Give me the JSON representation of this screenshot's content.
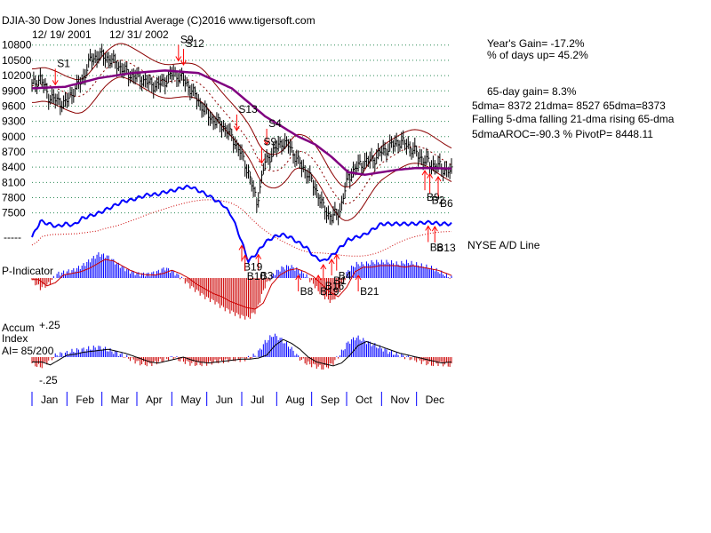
{
  "header": {
    "title": "DJIA-30  Dow Jones Industrial Average   (C)2016 www.tigersoft.com",
    "date_range": "12/ 19/ 2001",
    "date_range_end": "12/ 31/ 2002"
  },
  "stats": {
    "years_gain": "Year's Gain= -17.2%",
    "pct_days_up": "% of days up= 45.2%",
    "gain_65day": "65-day gain= 8.3%",
    "ma_line": "5dma= 8372 21dma= 8527 65dma=8373",
    "trend_line": "Falling 5-dma  falling 21-dma  rising 65-dma",
    "aroc_line": "5dmaAROC=-90.3 %  PivotP= 8448.11"
  },
  "panels": {
    "ad_line_label": "NYSE A/D Line",
    "p_indicator_label": "P-Indicator",
    "accum_label": "Accum",
    "index_label": "Index",
    "ai_label": "AI= 85/200",
    "accum_top": "+.25",
    "accum_bottom": "-.25",
    "ad_dashes": "-----"
  },
  "chart_data": {
    "type": "line",
    "title": "DJIA-30 Dow Jones Industrial Average",
    "xlabel": "",
    "ylabel": "",
    "ylim": [
      7250,
      10900
    ],
    "y_ticks": [
      10800,
      10500,
      10200,
      9900,
      9600,
      9300,
      9000,
      8700,
      8400,
      8100,
      7800,
      7500
    ],
    "months": [
      "Jan",
      "Feb",
      "Mar",
      "Apr",
      "May",
      "Jun",
      "Jul",
      "Aug",
      "Sep",
      "Oct",
      "Nov",
      "Dec"
    ],
    "series": [
      {
        "name": "DJIA close",
        "t": [
          0,
          5,
          10,
          15,
          20,
          25,
          30,
          35,
          40,
          45,
          50,
          55,
          60,
          65,
          70,
          75,
          80,
          85,
          90,
          95,
          100,
          105,
          110,
          115,
          120,
          125,
          130,
          135,
          140,
          145,
          150,
          155,
          160,
          165,
          170,
          175,
          180,
          185,
          190,
          195,
          200,
          205,
          210,
          215,
          220,
          225,
          230,
          235,
          240,
          245,
          252
        ],
        "values": [
          10000,
          10150,
          9800,
          9700,
          9650,
          9900,
          10100,
          10500,
          10600,
          10550,
          10450,
          10300,
          10200,
          10150,
          10050,
          10000,
          10100,
          10250,
          10150,
          9950,
          9700,
          9450,
          9300,
          9200,
          9000,
          8700,
          8300,
          7700,
          8500,
          8700,
          8900,
          8800,
          8500,
          8300,
          8000,
          7600,
          7400,
          7550,
          8200,
          8400,
          8500,
          8550,
          8700,
          8800,
          8900,
          8850,
          8700,
          8550,
          8450,
          8400,
          8300
        ]
      },
      {
        "name": "65-dma",
        "t": [
          0,
          20,
          40,
          60,
          80,
          100,
          120,
          140,
          150,
          160,
          170,
          180,
          190,
          200,
          210,
          220,
          230,
          240,
          252
        ],
        "values": [
          9950,
          9980,
          10150,
          10250,
          10300,
          10250,
          9950,
          9400,
          9200,
          9000,
          8850,
          8600,
          8300,
          8250,
          8300,
          8350,
          8380,
          8380,
          8373
        ]
      },
      {
        "name": "NYSE A/D Line",
        "t": [
          0,
          5,
          10,
          15,
          20,
          25,
          30,
          35,
          40,
          45,
          50,
          55,
          60,
          65,
          70,
          75,
          80,
          85,
          90,
          95,
          100,
          105,
          110,
          115,
          120,
          125,
          130,
          135,
          140,
          145,
          150,
          155,
          160,
          165,
          170,
          175,
          180,
          185,
          190,
          195,
          200,
          205,
          210,
          215,
          220,
          225,
          230,
          235,
          240,
          245,
          252
        ],
        "values": [
          20,
          32,
          30,
          28,
          30,
          29,
          34,
          36,
          38,
          41,
          44,
          47,
          48,
          50,
          52,
          52,
          54,
          55,
          57,
          58,
          55,
          52,
          48,
          44,
          36,
          20,
          2,
          8,
          16,
          20,
          22,
          20,
          16,
          12,
          5,
          2,
          6,
          12,
          18,
          20,
          22,
          26,
          30,
          30,
          30,
          30,
          30,
          31,
          31,
          30,
          30
        ]
      },
      {
        "name": "P-Indicator",
        "t": [
          0,
          5,
          10,
          15,
          20,
          25,
          30,
          35,
          40,
          45,
          50,
          55,
          60,
          65,
          70,
          75,
          80,
          85,
          90,
          95,
          100,
          105,
          110,
          115,
          120,
          125,
          130,
          135,
          140,
          145,
          150,
          155,
          160,
          165,
          170,
          175,
          180,
          185,
          190,
          195,
          200,
          205,
          210,
          215,
          220,
          225,
          230,
          235,
          240,
          245,
          252
        ],
        "values": [
          -5,
          -25,
          -15,
          10,
          15,
          20,
          30,
          45,
          60,
          55,
          40,
          25,
          15,
          10,
          10,
          15,
          25,
          15,
          0,
          -20,
          -35,
          -50,
          -60,
          -75,
          -85,
          -95,
          -100,
          -80,
          -20,
          10,
          25,
          30,
          20,
          5,
          -20,
          -45,
          -60,
          -30,
          20,
          35,
          35,
          40,
          40,
          40,
          35,
          40,
          35,
          30,
          25,
          15,
          0
        ]
      },
      {
        "name": "Accumulation Index",
        "t": [
          0,
          5,
          10,
          15,
          20,
          25,
          30,
          35,
          40,
          45,
          50,
          55,
          60,
          65,
          70,
          75,
          80,
          85,
          90,
          95,
          100,
          105,
          110,
          115,
          120,
          125,
          130,
          135,
          140,
          145,
          150,
          155,
          160,
          165,
          170,
          175,
          180,
          185,
          190,
          195,
          200,
          205,
          210,
          215,
          220,
          225,
          230,
          235,
          240,
          245,
          252
        ],
        "values": [
          -0.05,
          -0.08,
          -0.03,
          0.02,
          0.03,
          0.05,
          0.06,
          0.07,
          0.08,
          0.06,
          0.04,
          0.01,
          -0.02,
          -0.05,
          -0.06,
          -0.04,
          -0.02,
          0.0,
          -0.03,
          -0.05,
          -0.06,
          -0.05,
          -0.04,
          -0.03,
          -0.02,
          -0.02,
          -0.01,
          0.02,
          0.12,
          0.18,
          0.14,
          0.08,
          0.0,
          -0.05,
          -0.07,
          -0.09,
          -0.06,
          0.02,
          0.12,
          0.16,
          0.13,
          0.1,
          0.07,
          0.04,
          0.02,
          0.0,
          -0.02,
          -0.04,
          -0.06,
          -0.05,
          -0.07
        ]
      }
    ],
    "signals": [
      {
        "label": "S1",
        "t": 14,
        "kind": "sell",
        "pane": "price"
      },
      {
        "label": "S9",
        "t": 88,
        "kind": "sell",
        "pane": "price"
      },
      {
        "label": "S12",
        "t": 91,
        "kind": "sell",
        "pane": "price"
      },
      {
        "label": "S13",
        "t": 123,
        "kind": "sell",
        "pane": "price"
      },
      {
        "label": "S4",
        "t": 141,
        "kind": "sell",
        "pane": "price"
      },
      {
        "label": "S9",
        "t": 138,
        "kind": "sell",
        "pane": "price"
      },
      {
        "label": "B3",
        "t": 136,
        "kind": "buy",
        "pane": "ad"
      },
      {
        "label": "B19",
        "t": 126,
        "kind": "buy",
        "pane": "ad"
      },
      {
        "label": "B10",
        "t": 128,
        "kind": "buy",
        "pane": "ad"
      },
      {
        "label": "B8",
        "t": 160,
        "kind": "buy",
        "pane": "pind"
      },
      {
        "label": "B19",
        "t": 172,
        "kind": "buy",
        "pane": "pind"
      },
      {
        "label": "B16",
        "t": 175,
        "kind": "buy",
        "pane": "ad"
      },
      {
        "label": "B1",
        "t": 180,
        "kind": "buy",
        "pane": "ad"
      },
      {
        "label": "B4",
        "t": 183,
        "kind": "buy",
        "pane": "ad"
      },
      {
        "label": "B21",
        "t": 196,
        "kind": "buy",
        "pane": "pind"
      },
      {
        "label": "B9",
        "t": 236,
        "kind": "buy",
        "pane": "price"
      },
      {
        "label": "B2",
        "t": 239,
        "kind": "buy",
        "pane": "price"
      },
      {
        "label": "B6",
        "t": 244,
        "kind": "buy",
        "pane": "price"
      },
      {
        "label": "B13",
        "t": 242,
        "kind": "buy",
        "pane": "ad"
      },
      {
        "label": "B6",
        "t": 238,
        "kind": "buy",
        "pane": "ad"
      }
    ]
  },
  "colors": {
    "background": "#ffffff",
    "price_bars": "#000000",
    "band": "#8b0000",
    "ma65": "#800080",
    "ad_line": "#0000ff",
    "positive": "#0000ff",
    "negative": "#cc0000",
    "signal": "#ff0000",
    "grid": "#2e8b57",
    "ad_ma": "#cc0000"
  }
}
